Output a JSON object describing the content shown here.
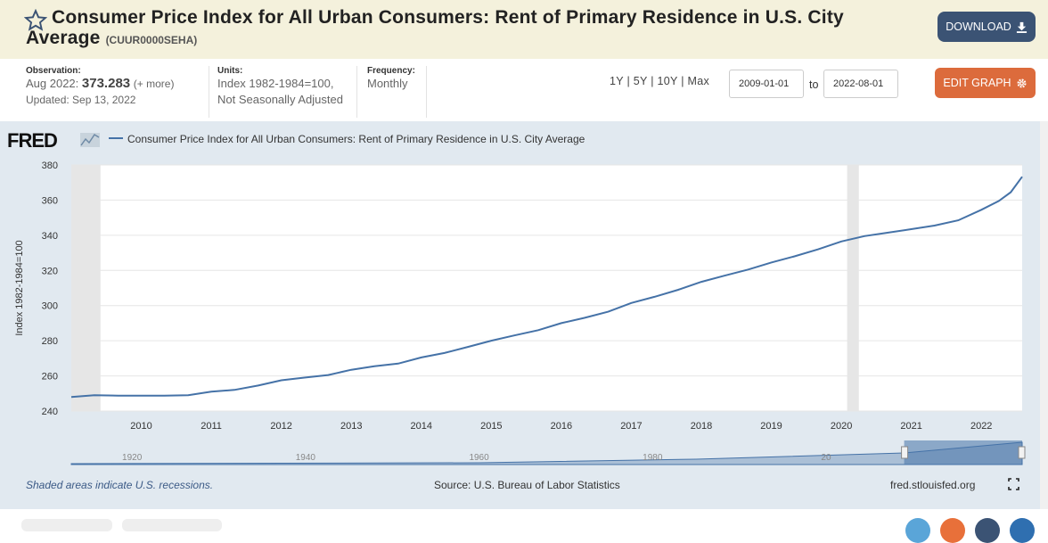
{
  "header": {
    "title_line1": "Consumer Price Index for All Urban Consumers: Rent of Primary Residence in U.S. City",
    "title_line2": "Average",
    "series_id": "(CUUR0000SEHA)",
    "download_label": "DOWNLOAD"
  },
  "meta": {
    "observation_label": "Observation:",
    "observation_date": "Aug 2022:",
    "observation_value": "373.283",
    "observation_more": "(+ more)",
    "updated": "Updated: Sep 13, 2022",
    "units_label": "Units:",
    "units_line1": "Index 1982-1984=100,",
    "units_line2": "Not Seasonally Adjusted",
    "frequency_label": "Frequency:",
    "frequency_value": "Monthly"
  },
  "controls": {
    "ranges": [
      "1Y",
      "5Y",
      "10Y",
      "Max"
    ],
    "start_date": "2009-01-01",
    "to_label": "to",
    "end_date": "2022-08-01",
    "edit_label": "EDIT GRAPH"
  },
  "footer": {
    "recession_note": "Shaded areas indicate U.S. recessions.",
    "source": "Source: U.S. Bureau of Labor Statistics",
    "site": "fred.stlouisfed.org"
  },
  "icons": {
    "star": "star-icon",
    "download": "download-icon",
    "gear": "gear-icon",
    "fullscreen": "fullscreen-icon"
  },
  "colors": {
    "line": "#4572a7",
    "recession": "#e6e6e6",
    "chart_bg": "#e1e9f0",
    "download_btn": "#3b5374",
    "edit_btn": "#dc6b3c"
  },
  "chart_data": {
    "type": "line",
    "logo": "FRED",
    "legend": "Consumer Price Index for All Urban Consumers: Rent of Primary Residence in U.S. City Average",
    "ylabel": "Index 1982-1984=100",
    "xlabel": "",
    "xlim": [
      2009.0,
      2022.583
    ],
    "ylim": [
      240,
      380
    ],
    "yticks": [
      240,
      260,
      280,
      300,
      320,
      340,
      360,
      380
    ],
    "xticks": [
      "2010",
      "2011",
      "2012",
      "2013",
      "2014",
      "2015",
      "2016",
      "2017",
      "2018",
      "2019",
      "2020",
      "2021",
      "2022"
    ],
    "recessions": [
      [
        2009.0,
        2009.417
      ],
      [
        2020.083,
        2020.25
      ]
    ],
    "x": [
      2009.0,
      2009.33,
      2009.67,
      2010.0,
      2010.33,
      2010.67,
      2011.0,
      2011.33,
      2011.67,
      2012.0,
      2012.33,
      2012.67,
      2013.0,
      2013.33,
      2013.67,
      2014.0,
      2014.33,
      2014.67,
      2015.0,
      2015.33,
      2015.67,
      2016.0,
      2016.33,
      2016.67,
      2017.0,
      2017.33,
      2017.67,
      2018.0,
      2018.33,
      2018.67,
      2019.0,
      2019.33,
      2019.67,
      2020.0,
      2020.33,
      2020.67,
      2021.0,
      2021.33,
      2021.67,
      2022.0,
      2022.25,
      2022.42,
      2022.583
    ],
    "values": [
      248.0,
      249.0,
      248.8,
      248.7,
      248.8,
      249.0,
      251.0,
      252.0,
      254.5,
      257.5,
      259.0,
      260.5,
      263.5,
      265.5,
      267.0,
      270.5,
      273.0,
      276.5,
      280.0,
      283.0,
      286.0,
      290.0,
      293.0,
      296.5,
      301.5,
      305.0,
      309.0,
      313.5,
      317.0,
      320.5,
      324.5,
      328.0,
      332.0,
      336.5,
      339.5,
      341.5,
      343.5,
      345.5,
      348.5,
      354.5,
      359.5,
      364.5,
      373.283
    ],
    "navigator": {
      "ticks": [
        "1920",
        "1940",
        "1960",
        "1980",
        "20"
      ],
      "selection": [
        "2009-01-01",
        "2022-08-01"
      ]
    }
  }
}
